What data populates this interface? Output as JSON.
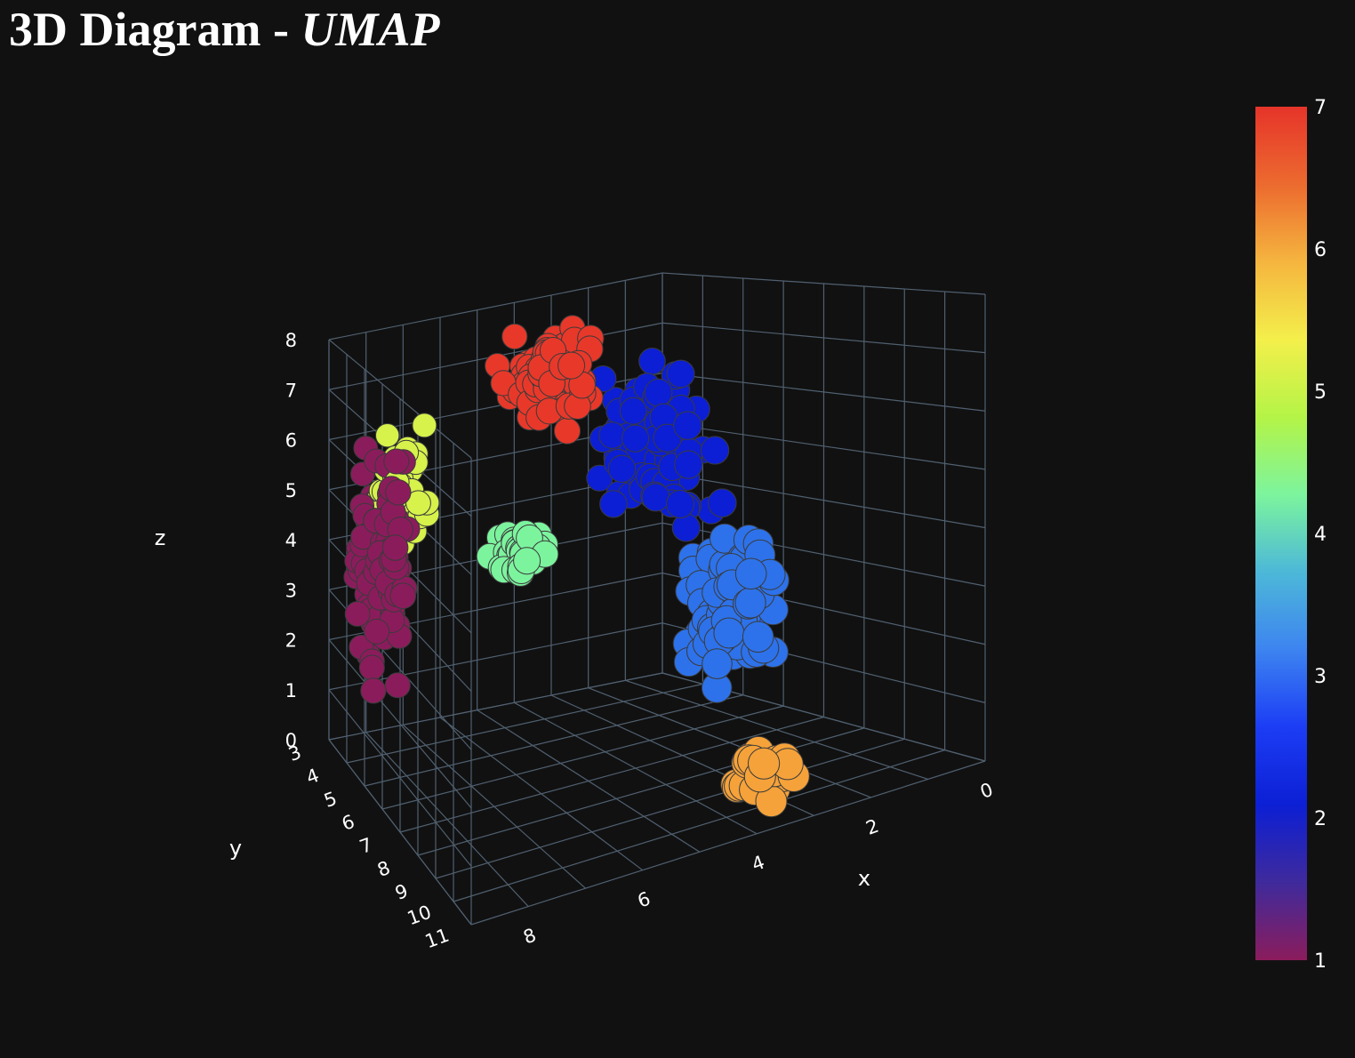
{
  "chart_data": {
    "type": "scatter3d",
    "title": "3D Diagram - ",
    "title_italic": "UMAP",
    "xlabel": "x",
    "ylabel": "y",
    "zlabel": "z",
    "x_ticks": [
      "0",
      "2",
      "4",
      "6",
      "8"
    ],
    "y_ticks": [
      "3",
      "4",
      "5",
      "6",
      "7",
      "8",
      "9",
      "10",
      "11"
    ],
    "z_ticks": [
      "0",
      "1",
      "2",
      "3",
      "4",
      "5",
      "6",
      "7",
      "8"
    ],
    "xlim": [
      0,
      9
    ],
    "ylim": [
      3,
      11
    ],
    "zlim": [
      0,
      8
    ],
    "grid": true,
    "colorbar": {
      "ticks": [
        "1",
        "2",
        "3",
        "4",
        "5",
        "6",
        "7"
      ],
      "range": [
        1,
        7
      ],
      "colors": [
        "#8b1c5c",
        "#3f2a9c",
        "#0c1fd4",
        "#1c3df5",
        "#3d84f0",
        "#4db8d8",
        "#7cf49e",
        "#b4f447",
        "#f4ef4b",
        "#f5b53f",
        "#ec6a2f",
        "#e6342a"
      ]
    },
    "clusters": [
      {
        "value": 1,
        "color": "#8b1c5c",
        "center": [
          8.2,
          4.2,
          3.9
        ],
        "spread": [
          0.55,
          0.8,
          1.6
        ],
        "count": 90
      },
      {
        "value": 2,
        "color": "#0c1fd4",
        "center": [
          3.1,
          6.2,
          5.6
        ],
        "spread": [
          0.75,
          0.9,
          1.2
        ],
        "count": 90
      },
      {
        "value": 3,
        "color": "#2d72ea",
        "center": [
          3.2,
          8.7,
          3.2
        ],
        "spread": [
          0.55,
          0.85,
          1.0
        ],
        "count": 95
      },
      {
        "value": 4,
        "color": "#7cf49e",
        "center": [
          5.7,
          5.8,
          4.1
        ],
        "spread": [
          0.5,
          0.5,
          0.3
        ],
        "count": 45
      },
      {
        "value": 5,
        "color": "#d6f24b",
        "center": [
          7.5,
          3.7,
          5.0
        ],
        "spread": [
          0.45,
          0.55,
          1.0
        ],
        "count": 55
      },
      {
        "value": 6,
        "color": "#f5a23a",
        "center": [
          3.2,
          9.9,
          0.55
        ],
        "spread": [
          0.4,
          0.55,
          0.4
        ],
        "count": 30
      },
      {
        "value": 7,
        "color": "#e8382a",
        "center": [
          4.8,
          5.2,
          7.1
        ],
        "spread": [
          0.85,
          0.6,
          0.7
        ],
        "count": 90
      }
    ]
  }
}
